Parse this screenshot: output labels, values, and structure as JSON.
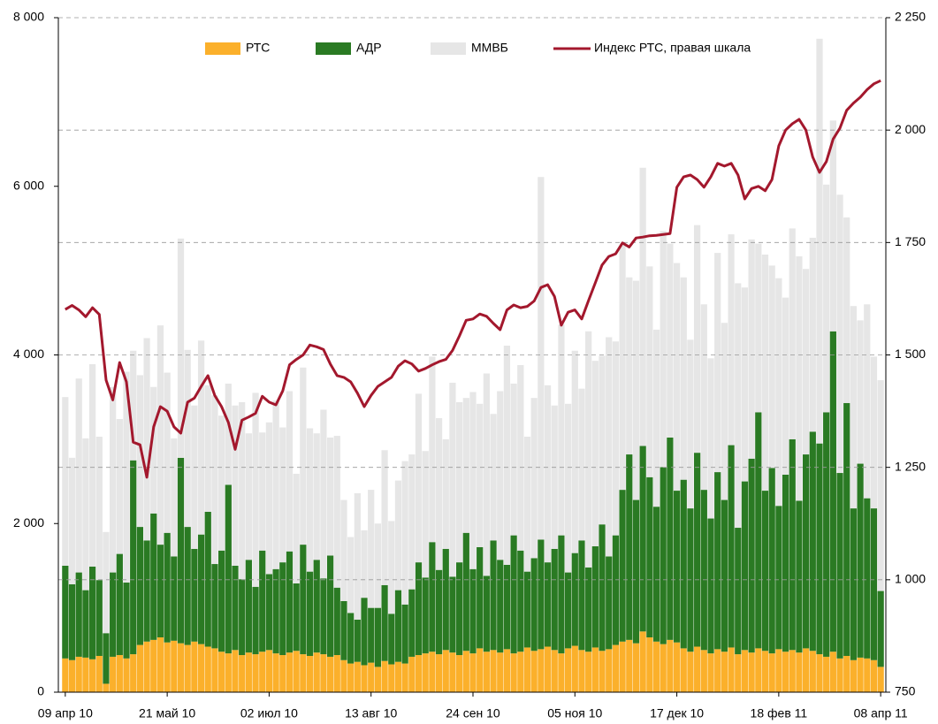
{
  "chart_data": {
    "type": "bar",
    "stacked": true,
    "categories": [
      "09 апр 10",
      null,
      null,
      null,
      null,
      null,
      null,
      null,
      null,
      null,
      null,
      null,
      null,
      null,
      null,
      "21 май 10",
      null,
      null,
      null,
      null,
      null,
      null,
      null,
      null,
      null,
      null,
      null,
      null,
      null,
      null,
      "02 июл 10",
      null,
      null,
      null,
      null,
      null,
      null,
      null,
      null,
      null,
      null,
      null,
      null,
      null,
      null,
      "13 авг 10",
      null,
      null,
      null,
      null,
      null,
      null,
      null,
      null,
      null,
      null,
      null,
      null,
      null,
      null,
      "24 сен 10",
      null,
      null,
      null,
      null,
      null,
      null,
      null,
      null,
      null,
      null,
      null,
      null,
      null,
      null,
      "05 ноя 10",
      null,
      null,
      null,
      null,
      null,
      null,
      null,
      null,
      null,
      null,
      null,
      null,
      null,
      null,
      "17 дек 10",
      null,
      null,
      null,
      null,
      null,
      null,
      null,
      null,
      null,
      null,
      null,
      null,
      null,
      null,
      "18 фев 11",
      null,
      null,
      null,
      null,
      null,
      null,
      null,
      null,
      null,
      null,
      null,
      null,
      null,
      null,
      "08 апр 11"
    ],
    "series": [
      {
        "name": "РТС",
        "color": "#fbb02b",
        "values": [
          400,
          380,
          420,
          410,
          390,
          430,
          100,
          420,
          440,
          400,
          450,
          560,
          600,
          620,
          650,
          590,
          610,
          580,
          560,
          600,
          570,
          540,
          520,
          480,
          460,
          500,
          440,
          470,
          450,
          480,
          500,
          460,
          440,
          470,
          490,
          450,
          430,
          470,
          450,
          420,
          440,
          380,
          340,
          360,
          320,
          350,
          300,
          370,
          330,
          360,
          340,
          420,
          440,
          460,
          480,
          450,
          500,
          470,
          440,
          490,
          460,
          520,
          480,
          500,
          470,
          510,
          460,
          480,
          530,
          490,
          510,
          540,
          500,
          460,
          520,
          550,
          500,
          480,
          530,
          490,
          510,
          560,
          600,
          620,
          580,
          720,
          650,
          600,
          570,
          620,
          590,
          520,
          480,
          540,
          500,
          460,
          510,
          480,
          530,
          450,
          500,
          470,
          520,
          490,
          460,
          510,
          480,
          500,
          470,
          520,
          490,
          450,
          420,
          480,
          400,
          430,
          380,
          410,
          400,
          380,
          300
        ]
      },
      {
        "name": "АДР",
        "color": "#2a7a23",
        "values": [
          1100,
          900,
          1000,
          800,
          1100,
          900,
          600,
          1000,
          1200,
          900,
          2300,
          1400,
          1200,
          1500,
          1100,
          1300,
          1000,
          2200,
          1400,
          1100,
          1300,
          1600,
          1000,
          1200,
          2000,
          1000,
          900,
          1100,
          800,
          1200,
          900,
          1000,
          1100,
          1200,
          800,
          1300,
          1000,
          1100,
          900,
          1200,
          800,
          700,
          600,
          500,
          800,
          650,
          700,
          900,
          600,
          850,
          700,
          800,
          1100,
          900,
          1300,
          1000,
          1200,
          900,
          1100,
          1400,
          1000,
          1200,
          900,
          1300,
          1100,
          1000,
          1400,
          1200,
          900,
          1100,
          1300,
          1000,
          1200,
          1400,
          900,
          1100,
          1300,
          1000,
          1200,
          1500,
          1100,
          1300,
          1800,
          2200,
          1700,
          2200,
          1900,
          1600,
          2100,
          2400,
          1800,
          2000,
          1700,
          2300,
          1900,
          1600,
          2100,
          1800,
          2400,
          1500,
          2000,
          2300,
          2800,
          1900,
          2200,
          1700,
          2100,
          2500,
          1800,
          2300,
          2600,
          2500,
          2900,
          3800,
          2200,
          3000,
          1800,
          2300,
          1900,
          1800,
          900
        ]
      },
      {
        "name": "ММВБ",
        "color": "#e6e6e6",
        "values": [
          2000,
          1500,
          2300,
          1800,
          2400,
          1700,
          1200,
          2200,
          1600,
          2500,
          1300,
          1800,
          2400,
          1500,
          2600,
          1900,
          1400,
          2600,
          2100,
          1700,
          2300,
          1500,
          2000,
          1600,
          1200,
          1900,
          2100,
          1500,
          2300,
          1400,
          1800,
          2000,
          1600,
          1900,
          1300,
          2100,
          1700,
          1500,
          2000,
          1400,
          1800,
          1200,
          900,
          1500,
          800,
          1400,
          1000,
          1600,
          1100,
          1300,
          1700,
          1600,
          2000,
          1500,
          2200,
          1800,
          1300,
          2300,
          1900,
          1600,
          2100,
          1700,
          2400,
          1500,
          2000,
          2600,
          1800,
          2200,
          1600,
          1900,
          4300,
          2100,
          1700,
          2500,
          2000,
          2400,
          1800,
          2800,
          2200,
          2000,
          2600,
          2300,
          2900,
          2100,
          2600,
          3300,
          2500,
          2100,
          2800,
          2300,
          2700,
          2400,
          2000,
          2700,
          2200,
          1900,
          2600,
          2100,
          2500,
          2900,
          2300,
          2600,
          2000,
          2800,
          2400,
          2700,
          2100,
          2500,
          2900,
          2200,
          2300,
          4800,
          2700,
          2500,
          3300,
          2200,
          2400,
          1700,
          2300,
          1800,
          2500
        ]
      },
      {
        "name": "Индекс РТС, правая шкала",
        "type": "line",
        "axis": "y2",
        "color": "#a3182d",
        "values": [
          1601,
          1610,
          1600,
          1585,
          1605,
          1590,
          1444,
          1400,
          1483,
          1440,
          1306,
          1300,
          1228,
          1340,
          1385,
          1375,
          1340,
          1326,
          1395,
          1404,
          1430,
          1454,
          1410,
          1385,
          1350,
          1290,
          1355,
          1362,
          1370,
          1408,
          1395,
          1389,
          1420,
          1478,
          1490,
          1500,
          1522,
          1518,
          1512,
          1480,
          1454,
          1450,
          1440,
          1415,
          1385,
          1410,
          1430,
          1440,
          1450,
          1475,
          1487,
          1480,
          1464,
          1470,
          1478,
          1485,
          1490,
          1510,
          1542,
          1577,
          1580,
          1591,
          1586,
          1570,
          1556,
          1600,
          1611,
          1605,
          1608,
          1620,
          1650,
          1656,
          1630,
          1566,
          1595,
          1600,
          1580,
          1621,
          1660,
          1700,
          1719,
          1725,
          1749,
          1740,
          1760,
          1762,
          1765,
          1766,
          1768,
          1770,
          1873,
          1896,
          1900,
          1890,
          1873,
          1896,
          1926,
          1920,
          1926,
          1900,
          1847,
          1870,
          1875,
          1865,
          1890,
          1965,
          2000,
          2014,
          2024,
          2000,
          1940,
          1906,
          1930,
          1980,
          2004,
          2044,
          2060,
          2073,
          2090,
          2103,
          2110
        ]
      }
    ],
    "ylim": [
      0,
      8000
    ],
    "yticks": [
      0,
      {
        "value": 2000,
        "label": "2 000"
      },
      {
        "value": 4000,
        "label": "4 000"
      },
      {
        "value": 6000,
        "label": "6 000"
      },
      {
        "value": 8000,
        "label": "8 000"
      }
    ],
    "y2lim": [
      750,
      2250
    ],
    "y2ticks": [
      750,
      {
        "value": 1000,
        "label": "1 000"
      },
      {
        "value": 1250,
        "label": "1 250"
      },
      {
        "value": 1500,
        "label": "1 500"
      },
      {
        "value": 1750,
        "label": "1 750"
      },
      {
        "value": 2000,
        "label": "2 000"
      },
      {
        "value": 2250,
        "label": "2 250"
      }
    ],
    "grid": true,
    "legend": "top"
  }
}
